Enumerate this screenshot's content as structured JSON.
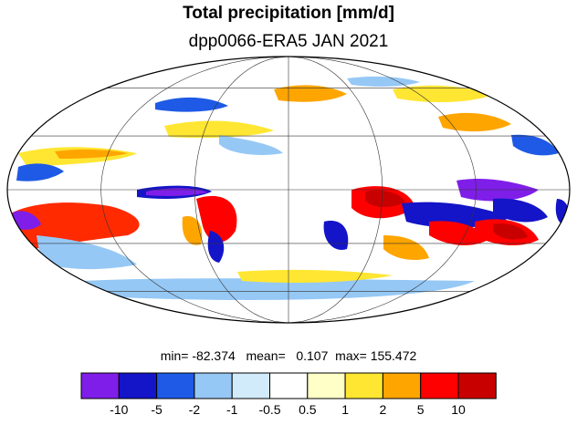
{
  "title": "Total precipitation [mm/d]",
  "subtitle": "dpp0066-ERA5 JAN 2021",
  "stats": {
    "min_label": "min=",
    "min": "-82.374",
    "mean_label": "mean=",
    "mean": "0.107",
    "max_label": "max=",
    "max": "155.472"
  },
  "colorbar": {
    "colors": [
      "#7f1ee8",
      "#1414c8",
      "#1e5ae6",
      "#96c8f5",
      "#d2ebfa",
      "#ffffff",
      "#ffffc8",
      "#ffe632",
      "#ffa500",
      "#ff0000",
      "#c80000"
    ],
    "tick_labels": [
      "-10",
      "-5",
      "-2",
      "-1",
      "-0.5",
      "0.5",
      "1",
      "2",
      "5",
      "10"
    ]
  },
  "map": {
    "projection": "mollweide",
    "grid_lon": [
      -120,
      -60,
      0,
      60,
      120
    ],
    "grid_lat": [
      -60,
      -30,
      0,
      30,
      60
    ]
  }
}
